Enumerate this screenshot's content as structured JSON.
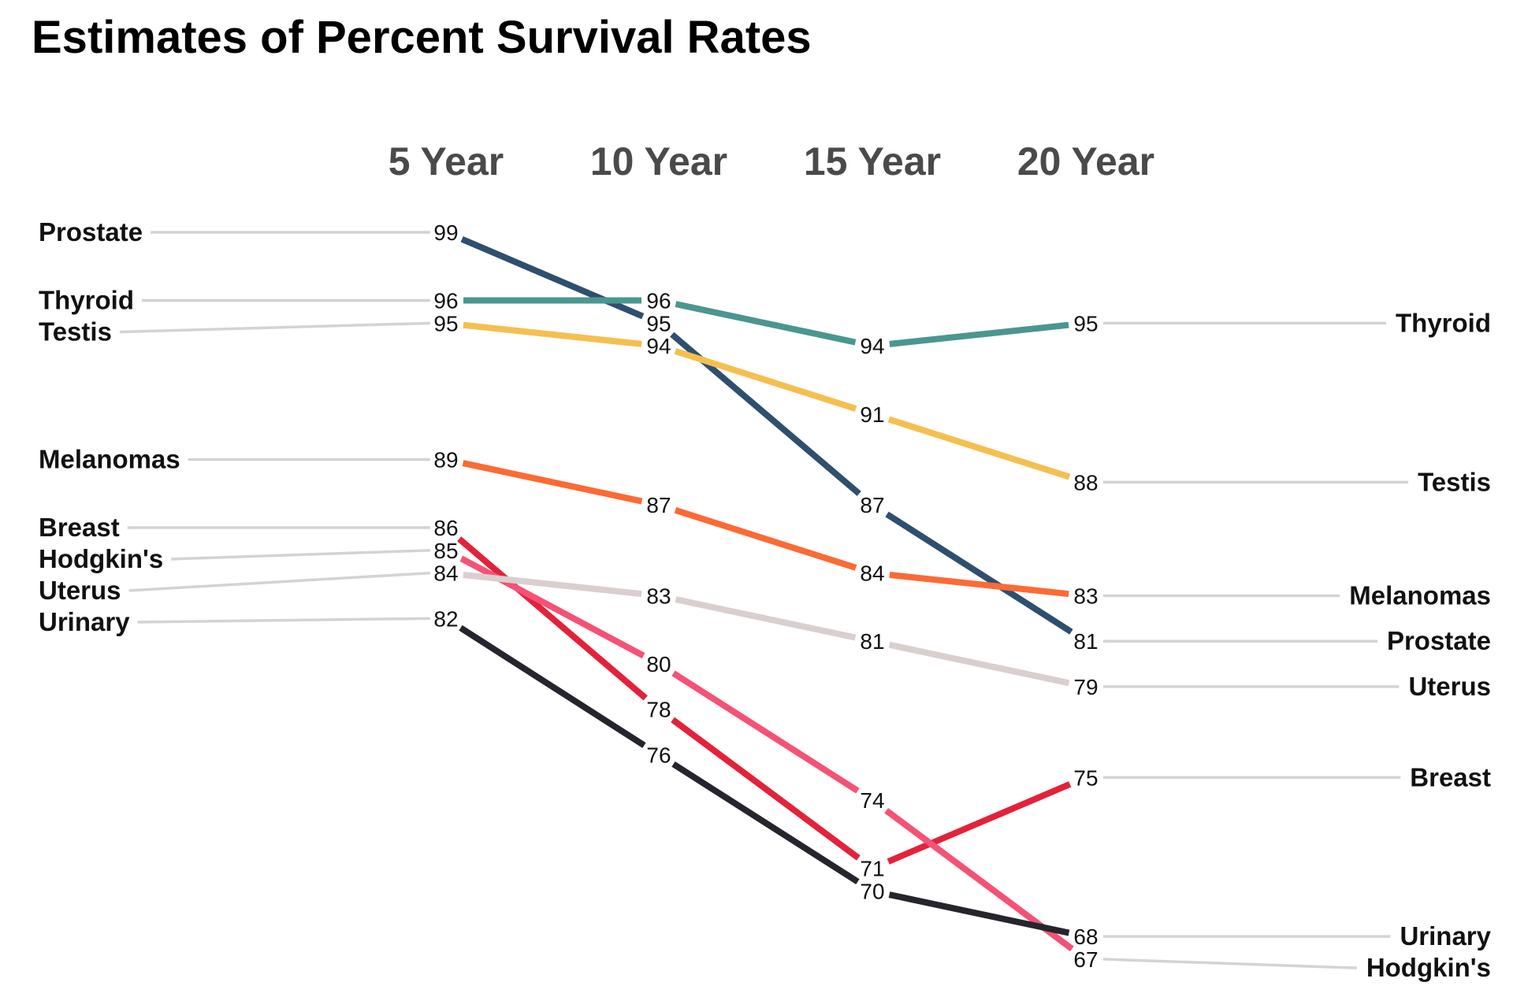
{
  "chart_data": {
    "type": "line",
    "title": "Estimates of Percent Survival Rates",
    "categories": [
      "5 Year",
      "10 Year",
      "15 Year",
      "20 Year"
    ],
    "series": [
      {
        "name": "Prostate",
        "values": [
          99,
          95,
          87,
          81
        ],
        "color": "#2f4f6f"
      },
      {
        "name": "Thyroid",
        "values": [
          96,
          96,
          94,
          95
        ],
        "color": "#4b9690"
      },
      {
        "name": "Testis",
        "values": [
          95,
          94,
          91,
          88
        ],
        "color": "#f5bf50"
      },
      {
        "name": "Melanomas",
        "values": [
          89,
          87,
          84,
          83
        ],
        "color": "#fc6a35"
      },
      {
        "name": "Breast",
        "values": [
          86,
          78,
          71,
          75
        ],
        "color": "#e3223a"
      },
      {
        "name": "Hodgkin's",
        "values": [
          85,
          80,
          74,
          67
        ],
        "color": "#f55275"
      },
      {
        "name": "Uterus",
        "values": [
          84,
          83,
          81,
          79
        ],
        "color": "#d9cfcf"
      },
      {
        "name": "Urinary",
        "values": [
          82,
          76,
          70,
          68
        ],
        "color": "#25262d"
      }
    ],
    "y_range": [
      67,
      99
    ],
    "grid": false,
    "connector_color": "#d3d3d3",
    "text_color": "#111111"
  }
}
